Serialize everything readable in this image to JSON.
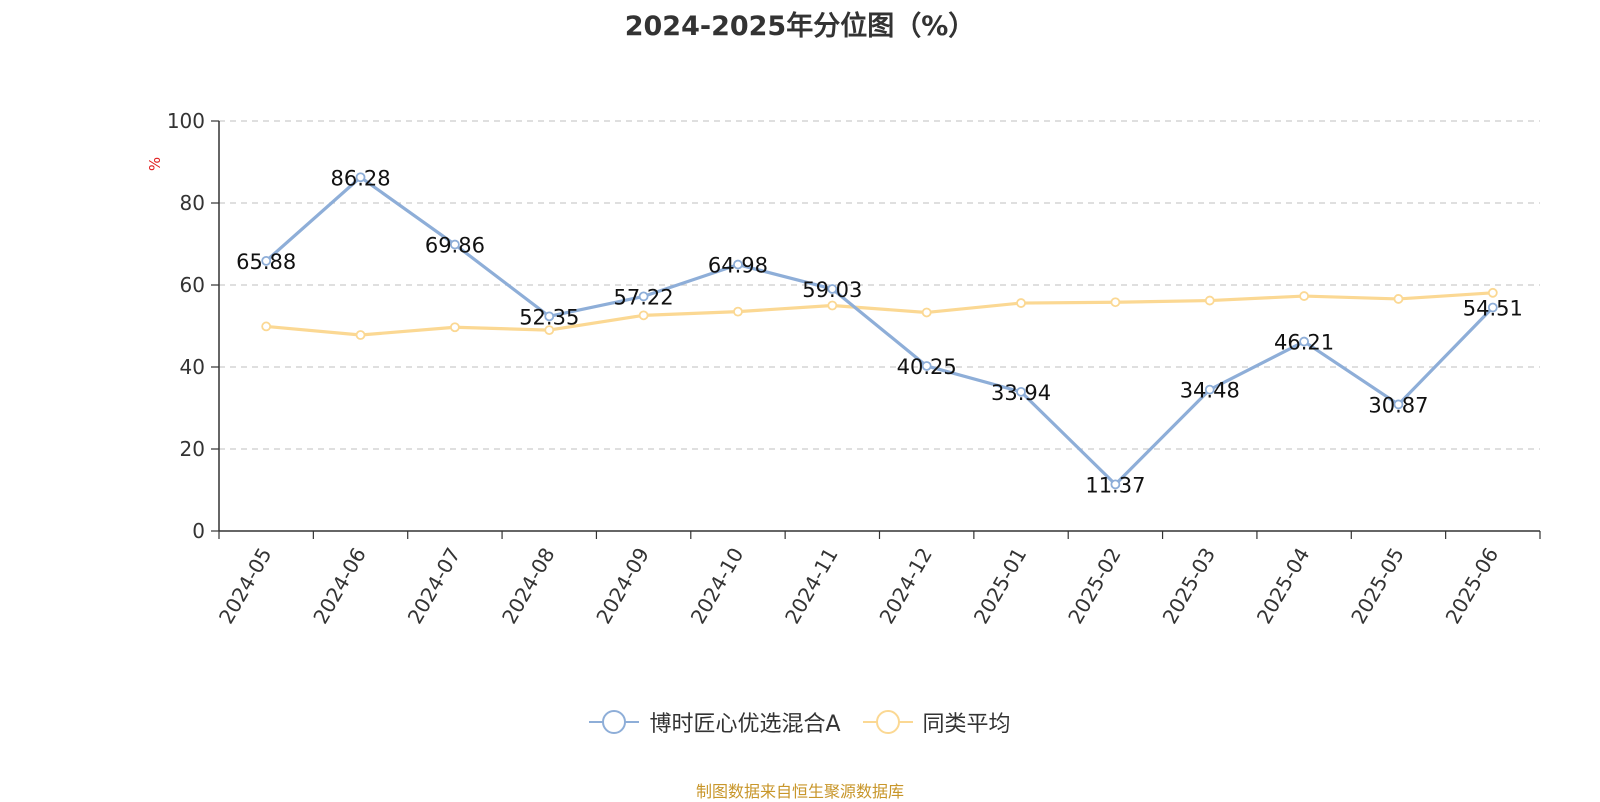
{
  "chart_data": {
    "type": "line",
    "title": "2024-2025年分位图（%）",
    "ylabel": "%",
    "xlabel": "",
    "categories": [
      "2024-05",
      "2024-06",
      "2024-07",
      "2024-08",
      "2024-09",
      "2024-10",
      "2024-11",
      "2024-12",
      "2025-01",
      "2025-02",
      "2025-03",
      "2025-04",
      "2025-05",
      "2025-06"
    ],
    "ylim": [
      0,
      100
    ],
    "yticks": [
      0,
      20,
      40,
      60,
      80,
      100
    ],
    "grid": true,
    "legend_position": "bottom-center",
    "series": [
      {
        "name": "博时匠心优选混合A",
        "color": "#8eaed8",
        "values": [
          65.88,
          86.28,
          69.86,
          52.35,
          57.22,
          64.98,
          59.03,
          40.25,
          33.94,
          11.37,
          34.48,
          46.21,
          30.87,
          54.51
        ],
        "data_labels": [
          "65.88",
          "86.28",
          "69.86",
          "52.35",
          "57.22",
          "64.98",
          "59.03",
          "40.25",
          "33.94",
          "11.37",
          "34.48",
          "46.21",
          "30.87",
          "54.51"
        ]
      },
      {
        "name": "同类平均",
        "color": "#fbd893",
        "values": [
          49.9,
          47.8,
          49.7,
          49.0,
          52.6,
          53.5,
          55.0,
          53.3,
          55.6,
          55.8,
          56.2,
          57.3,
          56.6,
          58.1
        ]
      }
    ],
    "source": "制图数据来自恒生聚源数据库"
  }
}
